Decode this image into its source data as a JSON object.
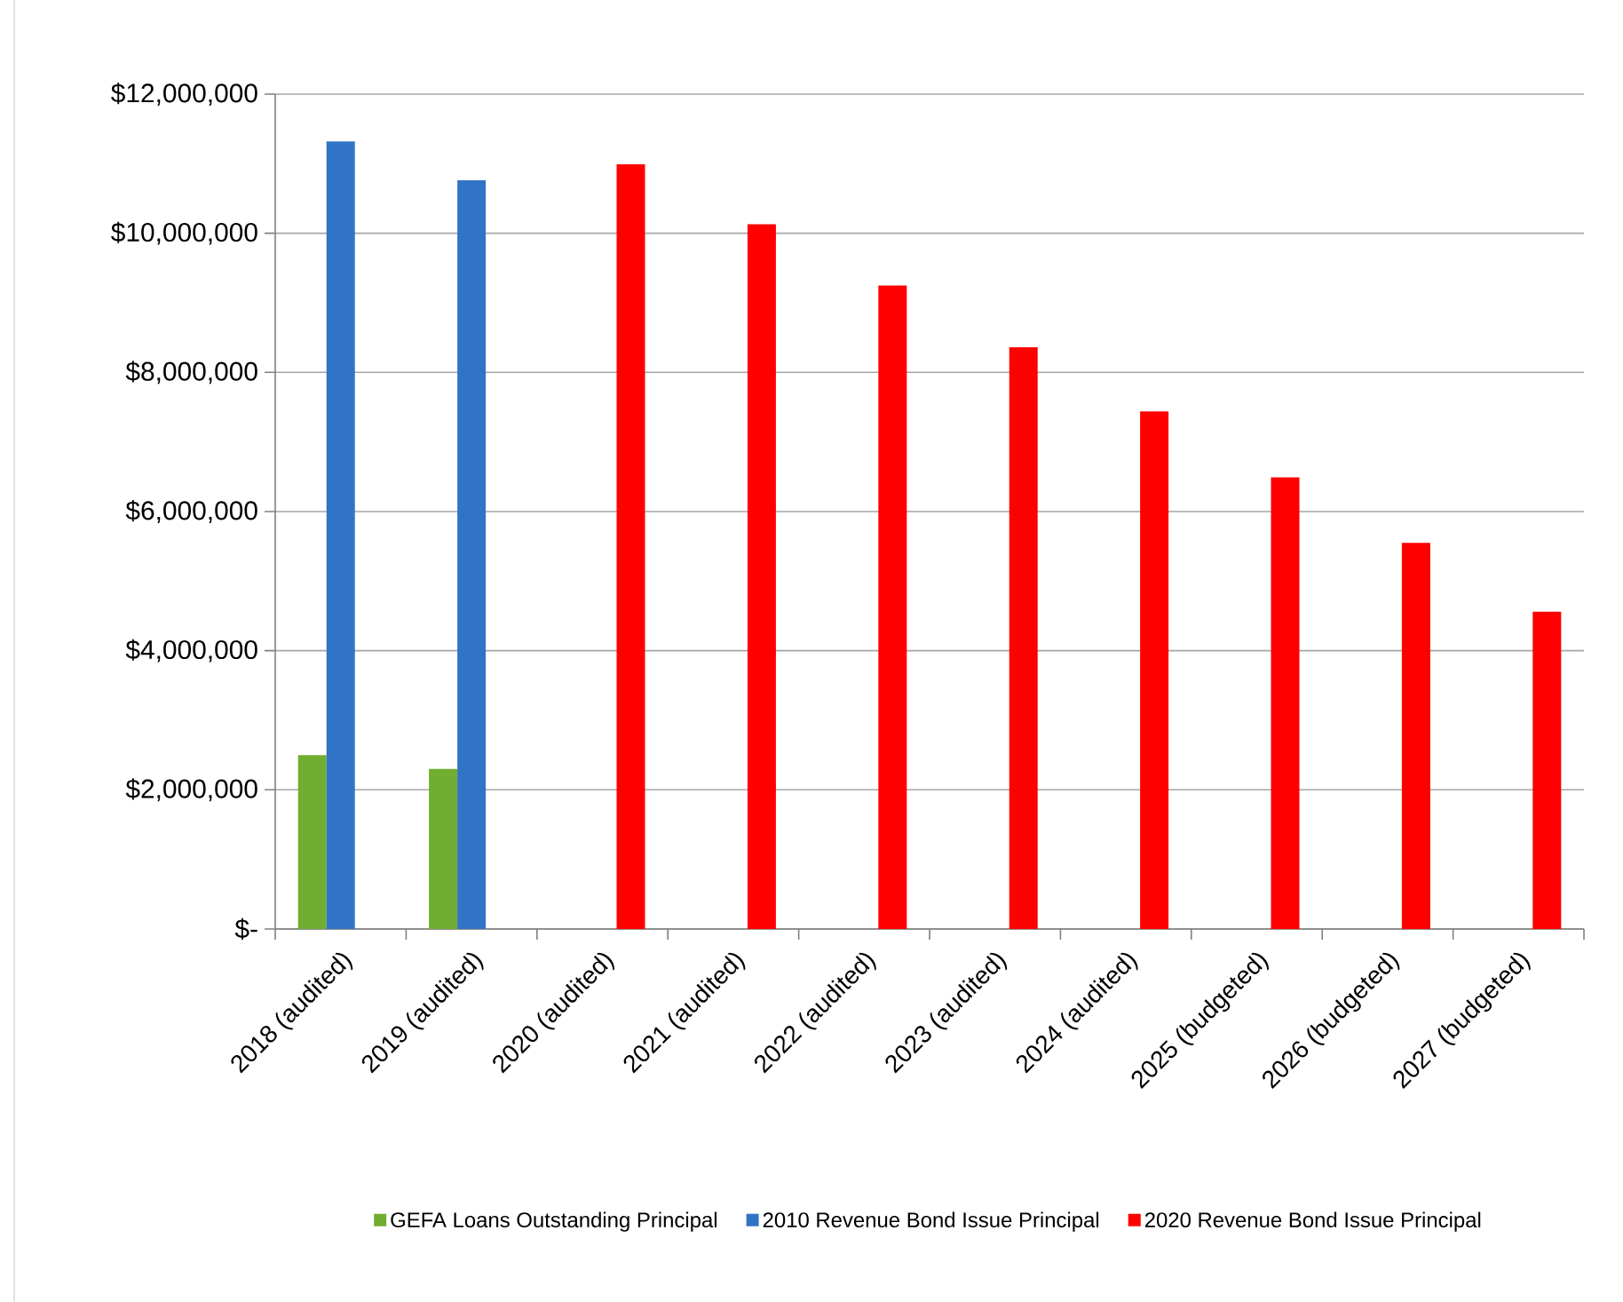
{
  "chart_data": {
    "type": "bar",
    "categories": [
      "2018 (audited)",
      "2019 (audited)",
      "2020 (audited)",
      "2021 (audited)",
      "2022 (audited)",
      "2023 (audited)",
      "2024 (audited)",
      "2025 (budgeted)",
      "2026 (budgeted)",
      "2027 (budgeted)"
    ],
    "series": [
      {
        "name": "GEFA Loans Outstanding Principal",
        "color": "#70ad30",
        "values": [
          2500000,
          2300000,
          null,
          null,
          null,
          null,
          null,
          null,
          null,
          null
        ]
      },
      {
        "name": "2010 Revenue Bond Issue Principal",
        "color": "#3174c6",
        "values": [
          11320000,
          10760000,
          null,
          null,
          null,
          null,
          null,
          null,
          null,
          null
        ]
      },
      {
        "name": "2020 Revenue Bond Issue Principal",
        "color": "#ff0000",
        "values": [
          null,
          null,
          10990000,
          10130000,
          9250000,
          8360000,
          7440000,
          6490000,
          5550000,
          4560000
        ]
      }
    ],
    "ylim": [
      0,
      12000000
    ],
    "yticks": [
      {
        "value": 0,
        "label": "$-"
      },
      {
        "value": 2000000,
        "label": "$2,000,000"
      },
      {
        "value": 4000000,
        "label": "$4,000,000"
      },
      {
        "value": 6000000,
        "label": "$6,000,000"
      },
      {
        "value": 8000000,
        "label": "$8,000,000"
      },
      {
        "value": 10000000,
        "label": "$10,000,000"
      },
      {
        "value": 12000000,
        "label": "$12,000,000"
      }
    ],
    "grid": "y",
    "legend": "bottom"
  }
}
